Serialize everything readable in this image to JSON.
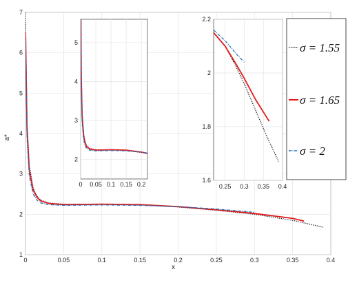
{
  "chart_data": [
    {
      "id": "main",
      "type": "line",
      "xlabel": "x",
      "ylabel": "a*",
      "xlim": [
        0,
        0.4
      ],
      "ylim": [
        1,
        7
      ],
      "xticks": [
        "0",
        "0.05",
        "0.1",
        "0.15",
        "0.2",
        "0.25",
        "0.3",
        "0.35",
        "0.4"
      ],
      "yticks": [
        "1",
        "2",
        "3",
        "4",
        "5",
        "6",
        "7"
      ],
      "grid": true,
      "series": [
        {
          "name": "σ = 1.55",
          "color": "#111111",
          "style": "dotted",
          "x": [
            0,
            0.002,
            0.005,
            0.01,
            0.015,
            0.02,
            0.03,
            0.05,
            0.1,
            0.15,
            0.2,
            0.25,
            0.3,
            0.35,
            0.39
          ],
          "y": [
            7.0,
            4.3,
            3.2,
            2.65,
            2.45,
            2.35,
            2.28,
            2.25,
            2.25,
            2.23,
            2.18,
            2.1,
            2.0,
            1.85,
            1.68
          ]
        },
        {
          "name": "σ = 1.65",
          "color": "#e01b1b",
          "style": "solid",
          "x": [
            0,
            0.002,
            0.005,
            0.01,
            0.015,
            0.02,
            0.03,
            0.05,
            0.1,
            0.15,
            0.2,
            0.25,
            0.3,
            0.35,
            0.365
          ],
          "y": [
            6.5,
            4.1,
            3.1,
            2.6,
            2.42,
            2.33,
            2.27,
            2.24,
            2.25,
            2.24,
            2.19,
            2.11,
            2.02,
            1.9,
            1.83
          ]
        },
        {
          "name": "σ = 2",
          "color": "#1f6fb8",
          "style": "dashdot",
          "x": [
            0,
            0.002,
            0.005,
            0.01,
            0.015,
            0.02,
            0.03,
            0.05,
            0.1,
            0.15,
            0.2,
            0.25,
            0.3
          ],
          "y": [
            6.3,
            3.9,
            2.95,
            2.5,
            2.35,
            2.28,
            2.24,
            2.22,
            2.23,
            2.22,
            2.19,
            2.13,
            2.05
          ]
        }
      ]
    },
    {
      "id": "inset-left",
      "type": "line",
      "xlim": [
        0,
        0.22
      ],
      "ylim": [
        1.5,
        5.6
      ],
      "xticks": [
        "0",
        "0.05",
        "0.1",
        "0.15",
        "0.2"
      ],
      "yticks": [
        "2",
        "3",
        "4",
        "5"
      ],
      "grid": true
    },
    {
      "id": "inset-right",
      "type": "line",
      "xlim": [
        0.22,
        0.4
      ],
      "ylim": [
        1.6,
        2.2
      ],
      "xticks": [
        "0.25",
        "0.3",
        "0.35",
        "0.4"
      ],
      "yticks": [
        "1.6",
        "1.8",
        "2",
        "2.2"
      ],
      "grid": true,
      "series": [
        {
          "name": "σ = 1.55",
          "color": "#111111",
          "style": "dotted",
          "x": [
            0.22,
            0.25,
            0.28,
            0.3,
            0.33,
            0.36,
            0.39
          ],
          "y": [
            2.15,
            2.1,
            2.02,
            1.96,
            1.86,
            1.76,
            1.67
          ]
        },
        {
          "name": "σ = 1.65",
          "color": "#e01b1b",
          "style": "solid",
          "x": [
            0.22,
            0.25,
            0.28,
            0.3,
            0.33,
            0.365
          ],
          "y": [
            2.15,
            2.1,
            2.03,
            1.98,
            1.9,
            1.82
          ]
        },
        {
          "name": "σ = 2",
          "color": "#1f6fb8",
          "style": "dashdot",
          "x": [
            0.22,
            0.25,
            0.28,
            0.3
          ],
          "y": [
            2.16,
            2.12,
            2.07,
            2.04
          ]
        }
      ]
    }
  ],
  "legend": {
    "position": "right",
    "entries": [
      {
        "label": "σ = 1.55",
        "color": "#111111",
        "style": "dotted"
      },
      {
        "label": "σ = 1.65",
        "color": "#e01b1b",
        "style": "solid"
      },
      {
        "label": "σ = 2",
        "color": "#1f6fb8",
        "style": "dashdot"
      }
    ]
  }
}
